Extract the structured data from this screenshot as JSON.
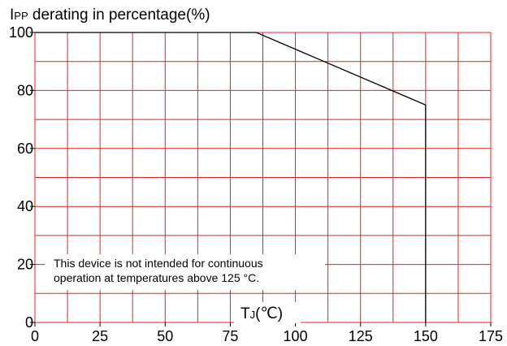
{
  "chart_data": {
    "type": "line",
    "ylabel_prefix": "I",
    "ylabel_sub": "PP",
    "ylabel_rest": " derating in percentage(%)",
    "xlabel_prefix": "T",
    "xlabel_sub": "J",
    "xlabel_rest": "(℃)",
    "xlim": [
      0,
      175
    ],
    "ylim": [
      0,
      100
    ],
    "x_ticks": [
      0,
      25,
      50,
      75,
      100,
      125,
      150,
      175
    ],
    "y_ticks": [
      0,
      20,
      40,
      60,
      80,
      100
    ],
    "grid": true,
    "grid_color": "#e8201a",
    "line_color": "#000000",
    "series": [
      {
        "x": [
          0,
          85,
          150,
          150
        ],
        "y": [
          100,
          100,
          75,
          0
        ]
      }
    ],
    "annotation": [
      "This device is not intended for continuous",
      "operation at temperatures above 125 °C."
    ]
  }
}
